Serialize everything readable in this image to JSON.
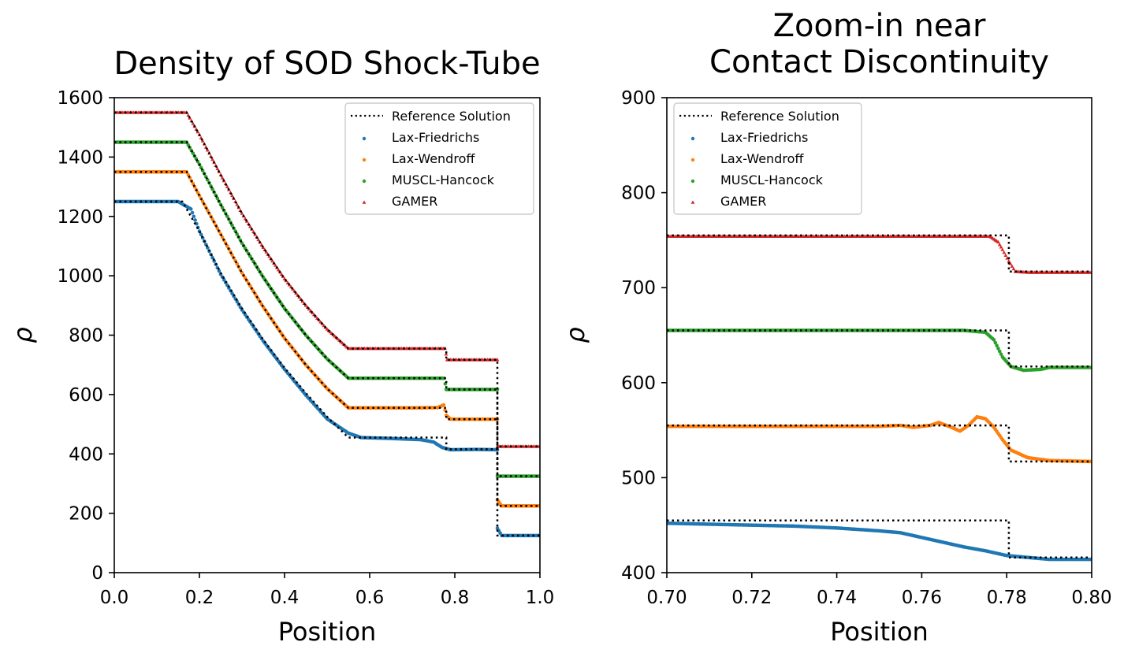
{
  "chart_data": [
    {
      "type": "scatter",
      "title": [
        "Density of SOD Shock-Tube"
      ],
      "xlabel": "Position",
      "ylabel": "ρ",
      "xlim": [
        0.0,
        1.0
      ],
      "ylim": [
        0,
        1600
      ],
      "xticks": [
        "0.0",
        "0.2",
        "0.4",
        "0.6",
        "0.8",
        "1.0"
      ],
      "yticks": [
        "0",
        "200",
        "400",
        "600",
        "800",
        "1000",
        "1200",
        "1400",
        "1600"
      ],
      "legend_position": "top-right",
      "series": [
        {
          "name": "Reference Solution",
          "kind": "dotted-line",
          "color": "#000000",
          "curves": [
            [
              [
                0,
                1250
              ],
              [
                0.16,
                1250
              ],
              [
                0.2,
                1150
              ],
              [
                0.25,
                1010
              ],
              [
                0.3,
                890
              ],
              [
                0.35,
                785
              ],
              [
                0.4,
                690
              ],
              [
                0.45,
                605
              ],
              [
                0.5,
                525
              ],
              [
                0.55,
                455
              ],
              [
                0.78,
                455
              ],
              [
                0.78,
                416
              ],
              [
                0.9,
                416
              ],
              [
                0.9,
                125
              ],
              [
                1.0,
                125
              ]
            ],
            [
              [
                0,
                1350
              ],
              [
                0.17,
                1350
              ],
              [
                0.2,
                1270
              ],
              [
                0.25,
                1140
              ],
              [
                0.3,
                1010
              ],
              [
                0.35,
                895
              ],
              [
                0.4,
                790
              ],
              [
                0.45,
                700
              ],
              [
                0.5,
                620
              ],
              [
                0.55,
                555
              ],
              [
                0.78,
                555
              ],
              [
                0.78,
                517
              ],
              [
                0.9,
                517
              ],
              [
                0.9,
                225
              ],
              [
                1.0,
                225
              ]
            ],
            [
              [
                0,
                1450
              ],
              [
                0.17,
                1450
              ],
              [
                0.2,
                1375
              ],
              [
                0.25,
                1240
              ],
              [
                0.3,
                1110
              ],
              [
                0.35,
                995
              ],
              [
                0.4,
                890
              ],
              [
                0.45,
                800
              ],
              [
                0.5,
                720
              ],
              [
                0.55,
                655
              ],
              [
                0.78,
                655
              ],
              [
                0.78,
                617
              ],
              [
                0.9,
                617
              ],
              [
                0.9,
                325
              ],
              [
                1.0,
                325
              ]
            ],
            [
              [
                0,
                1550
              ],
              [
                0.17,
                1550
              ],
              [
                0.2,
                1475
              ],
              [
                0.25,
                1340
              ],
              [
                0.3,
                1210
              ],
              [
                0.35,
                1095
              ],
              [
                0.4,
                990
              ],
              [
                0.45,
                900
              ],
              [
                0.5,
                820
              ],
              [
                0.55,
                755
              ],
              [
                0.78,
                755
              ],
              [
                0.78,
                717
              ],
              [
                0.9,
                717
              ],
              [
                0.9,
                425
              ],
              [
                1.0,
                425
              ]
            ]
          ]
        },
        {
          "name": "Lax-Friedrichs",
          "kind": "circle",
          "color": "#1f77b4",
          "points": [
            [
              0,
              1250
            ],
            [
              0.15,
              1250
            ],
            [
              0.18,
              1225
            ],
            [
              0.2,
              1150
            ],
            [
              0.25,
              1005
            ],
            [
              0.3,
              885
            ],
            [
              0.35,
              780
            ],
            [
              0.4,
              685
            ],
            [
              0.45,
              598
            ],
            [
              0.5,
              518
            ],
            [
              0.55,
              470
            ],
            [
              0.58,
              455
            ],
            [
              0.65,
              452
            ],
            [
              0.72,
              448
            ],
            [
              0.75,
              440
            ],
            [
              0.77,
              422
            ],
            [
              0.79,
              414
            ],
            [
              0.85,
              415
            ],
            [
              0.9,
              414
            ],
            [
              0.9,
              150
            ],
            [
              0.91,
              125
            ],
            [
              1.0,
              125
            ]
          ]
        },
        {
          "name": "Lax-Wendroff",
          "kind": "circle",
          "color": "#ff7f0e",
          "points": [
            [
              0,
              1350
            ],
            [
              0.17,
              1350
            ],
            [
              0.2,
              1270
            ],
            [
              0.25,
              1140
            ],
            [
              0.3,
              1010
            ],
            [
              0.35,
              895
            ],
            [
              0.4,
              790
            ],
            [
              0.45,
              700
            ],
            [
              0.5,
              620
            ],
            [
              0.55,
              555
            ],
            [
              0.7,
              555
            ],
            [
              0.76,
              556
            ],
            [
              0.774,
              565
            ],
            [
              0.78,
              530
            ],
            [
              0.79,
              517
            ],
            [
              0.9,
              517
            ],
            [
              0.9,
              245
            ],
            [
              0.91,
              225
            ],
            [
              1.0,
              225
            ]
          ]
        },
        {
          "name": "MUSCL-Hancock",
          "kind": "circle",
          "color": "#2ca02c",
          "points": [
            [
              0,
              1450
            ],
            [
              0.17,
              1450
            ],
            [
              0.2,
              1375
            ],
            [
              0.25,
              1240
            ],
            [
              0.3,
              1110
            ],
            [
              0.35,
              995
            ],
            [
              0.4,
              890
            ],
            [
              0.45,
              800
            ],
            [
              0.5,
              720
            ],
            [
              0.55,
              655
            ],
            [
              0.775,
              655
            ],
            [
              0.78,
              617
            ],
            [
              0.9,
              617
            ],
            [
              0.9,
              325
            ],
            [
              1.0,
              325
            ]
          ]
        },
        {
          "name": "GAMER",
          "kind": "triangle",
          "color": "#d62728",
          "points": [
            [
              0,
              1550
            ],
            [
              0.17,
              1550
            ],
            [
              0.2,
              1475
            ],
            [
              0.25,
              1340
            ],
            [
              0.3,
              1210
            ],
            [
              0.35,
              1095
            ],
            [
              0.4,
              990
            ],
            [
              0.45,
              900
            ],
            [
              0.5,
              820
            ],
            [
              0.55,
              755
            ],
            [
              0.777,
              755
            ],
            [
              0.782,
              717
            ],
            [
              0.9,
              717
            ],
            [
              0.9,
              425
            ],
            [
              1.0,
              425
            ]
          ]
        }
      ]
    },
    {
      "type": "scatter",
      "title": [
        "Zoom-in near",
        "Contact Discontinuity"
      ],
      "xlabel": "Position",
      "ylabel": "ρ",
      "xlim": [
        0.7,
        0.8
      ],
      "ylim": [
        400,
        900
      ],
      "xticks": [
        "0.70",
        "0.72",
        "0.74",
        "0.76",
        "0.78",
        "0.80"
      ],
      "yticks": [
        "400",
        "500",
        "600",
        "700",
        "800",
        "900"
      ],
      "legend_position": "top-left",
      "series": [
        {
          "name": "Reference Solution",
          "kind": "dotted-line",
          "color": "#000000",
          "curves": [
            [
              [
                0.7,
                455
              ],
              [
                0.7805,
                455
              ],
              [
                0.7805,
                416
              ],
              [
                0.8,
                416
              ]
            ],
            [
              [
                0.7,
                555
              ],
              [
                0.7805,
                555
              ],
              [
                0.7805,
                517
              ],
              [
                0.8,
                517
              ]
            ],
            [
              [
                0.7,
                655
              ],
              [
                0.7805,
                655
              ],
              [
                0.7805,
                617
              ],
              [
                0.8,
                617
              ]
            ],
            [
              [
                0.7,
                755
              ],
              [
                0.7805,
                755
              ],
              [
                0.7805,
                717
              ],
              [
                0.8,
                717
              ]
            ]
          ]
        },
        {
          "name": "Lax-Friedrichs",
          "kind": "circle",
          "color": "#1f77b4",
          "points": [
            [
              0.7,
              452
            ],
            [
              0.72,
              450
            ],
            [
              0.73,
              449
            ],
            [
              0.74,
              447
            ],
            [
              0.75,
              444
            ],
            [
              0.755,
              442
            ],
            [
              0.76,
              437
            ],
            [
              0.765,
              432
            ],
            [
              0.77,
              427
            ],
            [
              0.775,
              423
            ],
            [
              0.78,
              418
            ],
            [
              0.785,
              416
            ],
            [
              0.79,
              414
            ],
            [
              0.8,
              414
            ]
          ]
        },
        {
          "name": "Lax-Wendroff",
          "kind": "circle",
          "color": "#ff7f0e",
          "points": [
            [
              0.7,
              554
            ],
            [
              0.73,
              554
            ],
            [
              0.75,
              554
            ],
            [
              0.755,
              555
            ],
            [
              0.758,
              553
            ],
            [
              0.762,
              555
            ],
            [
              0.764,
              558
            ],
            [
              0.767,
              553
            ],
            [
              0.769,
              549
            ],
            [
              0.771,
              555
            ],
            [
              0.773,
              564
            ],
            [
              0.775,
              562
            ],
            [
              0.777,
              553
            ],
            [
              0.779,
              540
            ],
            [
              0.781,
              529
            ],
            [
              0.785,
              521
            ],
            [
              0.79,
              518
            ],
            [
              0.8,
              517
            ]
          ]
        },
        {
          "name": "MUSCL-Hancock",
          "kind": "circle",
          "color": "#2ca02c",
          "points": [
            [
              0.7,
              655
            ],
            [
              0.77,
              655
            ],
            [
              0.775,
              653
            ],
            [
              0.777,
              645
            ],
            [
              0.779,
              627
            ],
            [
              0.781,
              617
            ],
            [
              0.784,
              613
            ],
            [
              0.788,
              614
            ],
            [
              0.79,
              616
            ],
            [
              0.8,
              616
            ]
          ]
        },
        {
          "name": "GAMER",
          "kind": "triangle",
          "color": "#d62728",
          "points": [
            [
              0.7,
              754
            ],
            [
              0.776,
              754
            ],
            [
              0.778,
              748
            ],
            [
              0.779,
              740
            ],
            [
              0.7805,
              728
            ],
            [
              0.782,
              717
            ],
            [
              0.785,
              716
            ],
            [
              0.8,
              716
            ]
          ]
        }
      ]
    }
  ]
}
